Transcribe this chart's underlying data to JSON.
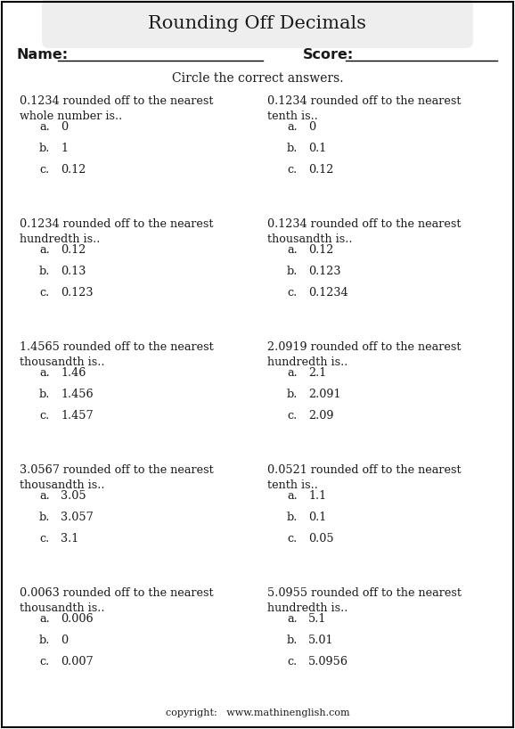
{
  "title": "Rounding Off Decimals",
  "name_label": "Name:",
  "score_label": "Score:",
  "instruction": "Circle the correct answers.",
  "bg_color": "#ffffff",
  "title_bg": "#eeeeee",
  "questions": [
    {
      "left": {
        "question": "0.1234 rounded off to the nearest\nwhole number is..",
        "options": [
          "0",
          "1",
          "0.12"
        ]
      },
      "right": {
        "question": "0.1234 rounded off to the nearest\ntenth is..",
        "options": [
          "0",
          "0.1",
          "0.12"
        ]
      }
    },
    {
      "left": {
        "question": "0.1234 rounded off to the nearest\nhundredth is..",
        "options": [
          "0.12",
          "0.13",
          "0.123"
        ]
      },
      "right": {
        "question": "0.1234 rounded off to the nearest\nthousandth is..",
        "options": [
          "0.12",
          "0.123",
          "0.1234"
        ]
      }
    },
    {
      "left": {
        "question": "1.4565 rounded off to the nearest\nthousandth is..",
        "options": [
          "1.46",
          "1.456",
          "1.457"
        ]
      },
      "right": {
        "question": "2.0919 rounded off to the nearest\nhundredth is..",
        "options": [
          "2.1",
          "2.091",
          "2.09"
        ]
      }
    },
    {
      "left": {
        "question": "3.0567 rounded off to the nearest\nthousandth is..",
        "options": [
          "3.05",
          "3.057",
          "3.1"
        ]
      },
      "right": {
        "question": "0.0521 rounded off to the nearest\ntenth is..",
        "options": [
          "1.1",
          "0.1",
          "0.05"
        ]
      }
    },
    {
      "left": {
        "question": "0.0063 rounded off to the nearest\nthousandth is..",
        "options": [
          "0.006",
          "0",
          "0.007"
        ]
      },
      "right": {
        "question": "5.0955 rounded off to the nearest\nhundredth is..",
        "options": [
          "5.1",
          "5.01",
          "5.0956"
        ]
      }
    }
  ],
  "copyright": "copyright:   www.mathinenglish.com",
  "text_color": "#1a1a1a",
  "option_letters": [
    "a.",
    "b.",
    "c."
  ],
  "border_color": "#000000",
  "title_fontsize": 15,
  "body_fontsize": 9.2,
  "name_fontsize": 11.5,
  "instr_fontsize": 10
}
